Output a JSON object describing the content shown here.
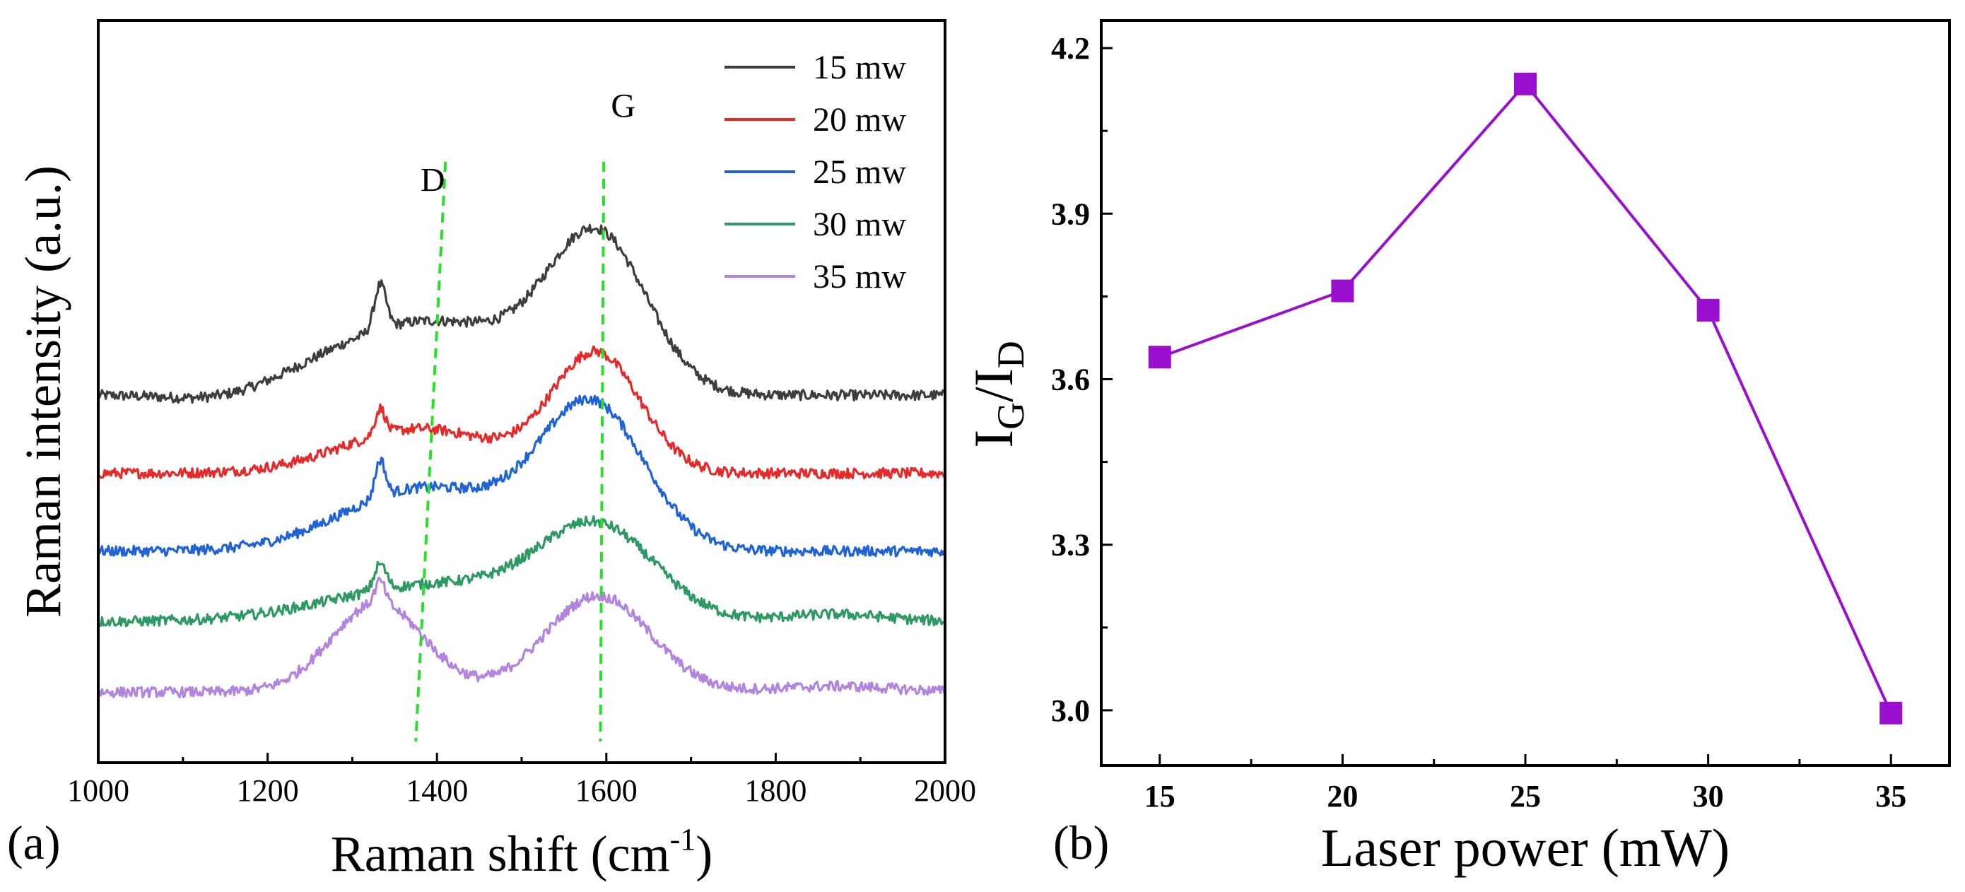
{
  "chart_data": [
    {
      "panel": "(a)",
      "type": "line",
      "title": "",
      "xlabel_main": "Raman shift (cm",
      "xlabel_sup": "-1",
      "xlabel_end": ")",
      "ylabel": "Raman intensity (a.u.)",
      "xlim": [
        1000,
        2000
      ],
      "xticks": [
        1000,
        1200,
        1400,
        1600,
        1800,
        2000
      ],
      "xtick_labels": [
        "1000",
        "1200",
        "1400",
        "1600",
        "1800",
        "2000"
      ],
      "peak_labels": [
        {
          "text": "D",
          "x": 1395,
          "level": 0.77
        },
        {
          "text": "G",
          "x": 1620,
          "level": 0.87
        }
      ],
      "guide_lines": [
        {
          "name": "D",
          "x_top": 1410,
          "x_bottom": 1375
        },
        {
          "name": "G",
          "x_top": 1597,
          "x_bottom": 1593
        }
      ],
      "series": [
        {
          "name": "15 mw",
          "color": "#3d3d3d",
          "baseline": 0.495
        },
        {
          "name": "20 mw",
          "color": "#e8292a",
          "baseline": 0.39
        },
        {
          "name": "25 mw",
          "color": "#1f63d8",
          "baseline": 0.285
        },
        {
          "name": "30 mw",
          "color": "#2e9a63",
          "baseline": 0.19
        },
        {
          "name": "35 mw",
          "color": "#b184e0",
          "baseline": 0.095
        }
      ],
      "peaks_note": "D near 1333 cm-1, G near 1590 cm-1"
    },
    {
      "panel": "(b)",
      "type": "line",
      "title": "",
      "xlabel": "Laser power (mW)",
      "ylabel_main": "I",
      "ylabel_sub1": "G",
      "ylabel_mid": "/I",
      "ylabel_sub2": "D",
      "x": [
        15,
        20,
        25,
        30,
        35
      ],
      "y": [
        3.64,
        3.76,
        4.135,
        3.725,
        2.995
      ],
      "xlim": [
        13.4,
        36.6
      ],
      "ylim": [
        2.9,
        4.25
      ],
      "xticks": [
        15,
        20,
        25,
        30,
        35
      ],
      "yticks": [
        3.0,
        3.3,
        3.6,
        3.9,
        4.2
      ],
      "color": "#9a0fcf"
    }
  ]
}
